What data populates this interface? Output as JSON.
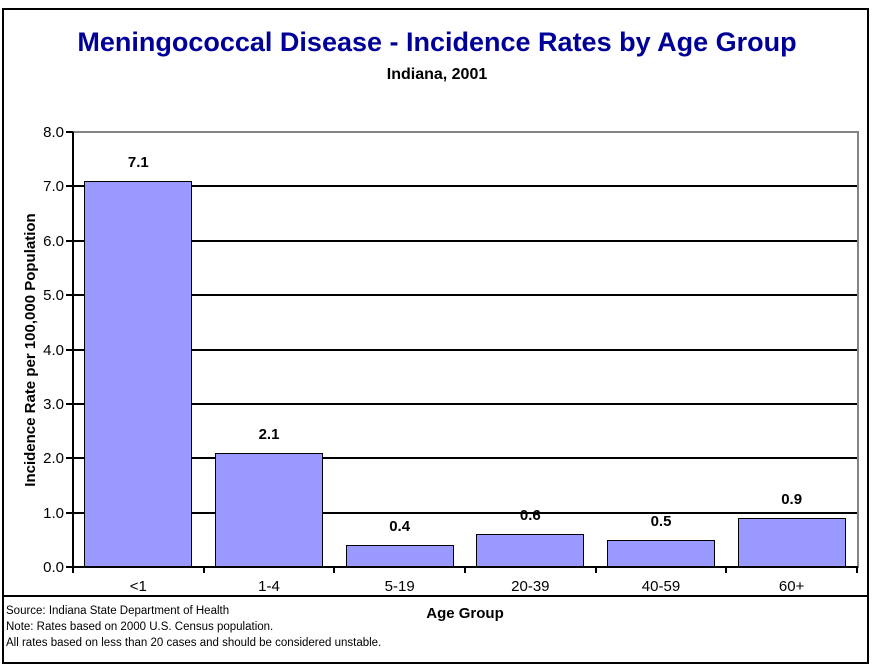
{
  "header": {
    "title": "Meningococcal Disease - Incidence Rates by Age Group",
    "subtitle": "Indiana, 2001",
    "title_color": "#000099"
  },
  "chart_data": {
    "type": "bar",
    "title": "Meningococcal Disease - Incidence Rates by Age Group",
    "subtitle": "Indiana, 2001",
    "categories": [
      "<1",
      "1-4",
      "5-19",
      "20-39",
      "40-59",
      "60+"
    ],
    "values": [
      7.1,
      2.1,
      0.4,
      0.6,
      0.5,
      0.9
    ],
    "value_labels": [
      "7.1",
      "2.1",
      "0.4",
      "0.6",
      "0.5",
      "0.9"
    ],
    "xlabel": "Age Group",
    "ylabel": "Incidence Rate per 100,000 Population",
    "ylim": [
      0,
      8
    ],
    "ytick_step": 1,
    "ytick_labels": [
      "0.0",
      "1.0",
      "2.0",
      "3.0",
      "4.0",
      "5.0",
      "6.0",
      "7.0",
      "8.0"
    ],
    "grid": true,
    "legend": false,
    "colors": {
      "bar_fill": "#9999FF",
      "bar_border": "#000000",
      "gridline": "#000000",
      "plot_frame": "#848484",
      "axis": "#000000",
      "title": "#000099"
    }
  },
  "footer": {
    "notes": [
      "Source: Indiana State Department of Health",
      "Note: Rates based on 2000 U.S. Census population.",
      "All rates based on less than 20 cases and should be considered unstable."
    ]
  }
}
